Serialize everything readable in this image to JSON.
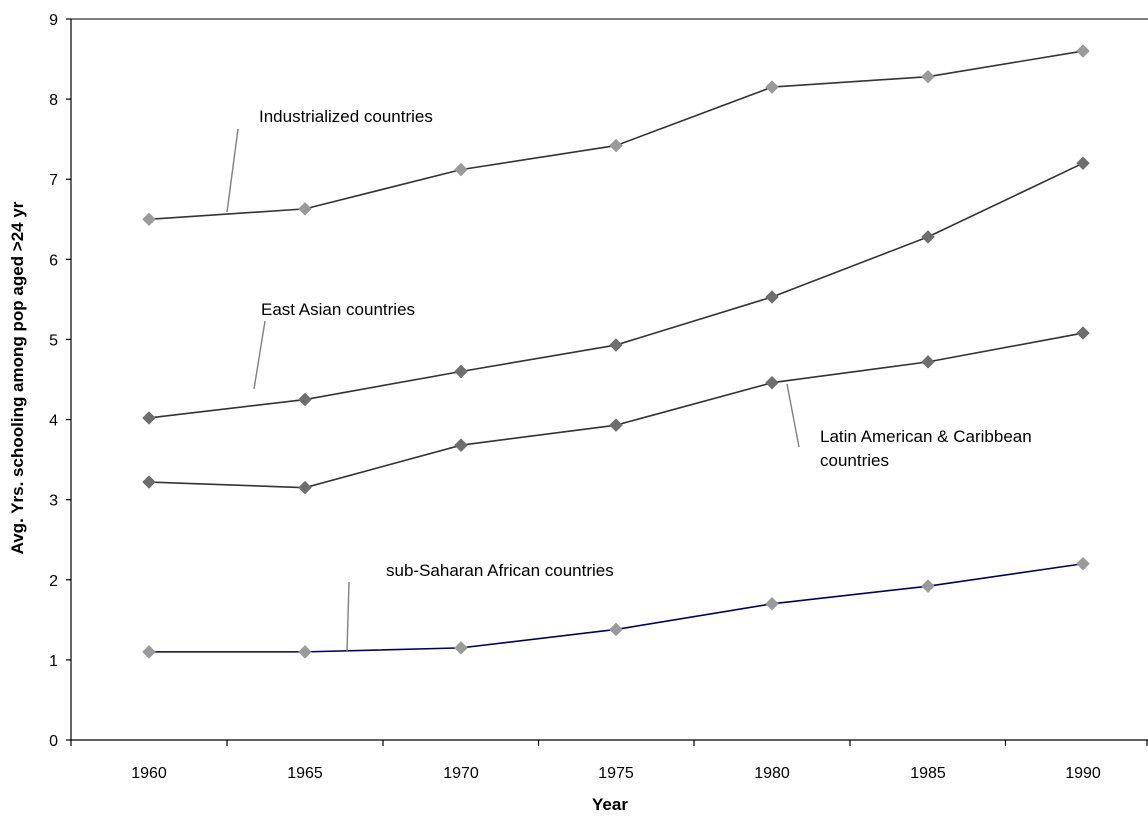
{
  "chart_data": {
    "type": "line",
    "title": "",
    "xlabel": "Year",
    "ylabel": "Avg. Yrs. schooling among pop aged >24 yr",
    "x": [
      1960,
      1965,
      1970,
      1975,
      1980,
      1985,
      1990
    ],
    "x_tick_labels": [
      "1960",
      "1965",
      "1970",
      "1975",
      "1980",
      "1985",
      "1990"
    ],
    "y_ticks": [
      0,
      1,
      2,
      3,
      4,
      5,
      6,
      7,
      8,
      9
    ],
    "ylim": [
      0,
      9
    ],
    "grid": false,
    "legend": "none (series identified by callout annotations)",
    "series": [
      {
        "key": "industrialized",
        "values": [
          6.5,
          6.63,
          7.12,
          7.42,
          8.15,
          8.28,
          8.6
        ],
        "line_color": "#333333",
        "marker_color": "#9a9a9a"
      },
      {
        "key": "east-asian",
        "values": [
          4.02,
          4.25,
          4.6,
          4.93,
          5.53,
          6.28,
          7.2
        ],
        "line_color": "#333333",
        "marker_color": "#6e6e6e"
      },
      {
        "key": "latin-american",
        "values": [
          3.22,
          3.15,
          3.68,
          3.93,
          4.46,
          4.72,
          5.08
        ],
        "line_color": "#333333",
        "marker_color": "#6e6e6e"
      },
      {
        "key": "sub-saharan",
        "values": [
          1.1,
          1.1,
          1.15,
          1.38,
          1.7,
          1.92,
          2.2
        ],
        "line_color": "#000066",
        "marker_color": "#9a9a9a"
      }
    ],
    "annotations": [
      {
        "series": "industrialized",
        "lines": [
          "Industrialized countries"
        ]
      },
      {
        "series": "east-asian",
        "lines": [
          "East Asian countries"
        ]
      },
      {
        "series": "latin-american",
        "lines": [
          "Latin American & Caribbean",
          "countries"
        ]
      },
      {
        "series": "sub-saharan",
        "lines": [
          "sub-Saharan African countries"
        ]
      }
    ]
  }
}
